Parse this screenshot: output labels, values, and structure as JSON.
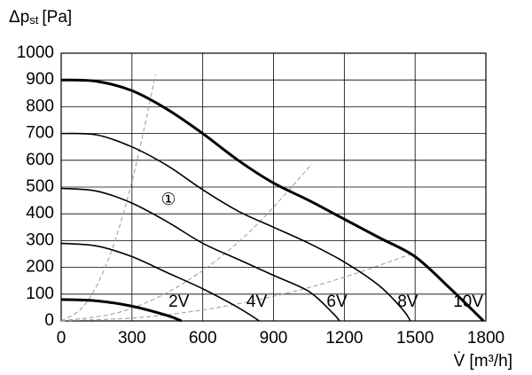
{
  "chart_data": {
    "type": "line",
    "y_label": {
      "symbol": "Δp",
      "subscript": "st",
      "unit": "[Pa]"
    },
    "x_label": "V̇ [m³/h]",
    "xlim": [
      0,
      1800
    ],
    "xticks": [
      0,
      300,
      600,
      900,
      1200,
      1500,
      1800
    ],
    "ylim": [
      0,
      1000
    ],
    "yticks": [
      0,
      100,
      200,
      300,
      400,
      500,
      600,
      700,
      800,
      900,
      1000
    ],
    "grid": true,
    "series": [
      {
        "name": "2V",
        "color": "#000",
        "thick": true,
        "x": [
          0,
          150,
          300,
          450,
          510
        ],
        "values": [
          80,
          75,
          55,
          20,
          0
        ]
      },
      {
        "name": "4V",
        "color": "#000",
        "thick": false,
        "x": [
          0,
          150,
          300,
          450,
          600,
          750,
          840
        ],
        "values": [
          290,
          280,
          240,
          180,
          120,
          50,
          0
        ]
      },
      {
        "name": "6V",
        "color": "#000",
        "thick": false,
        "x": [
          0,
          150,
          300,
          450,
          600,
          750,
          900,
          1050,
          1150,
          1180
        ],
        "values": [
          495,
          485,
          440,
          370,
          290,
          230,
          170,
          110,
          30,
          0
        ]
      },
      {
        "name": "8V",
        "color": "#000",
        "thick": false,
        "x": [
          0,
          150,
          300,
          450,
          600,
          750,
          900,
          1050,
          1200,
          1350,
          1450,
          1480
        ],
        "values": [
          700,
          695,
          650,
          580,
          490,
          410,
          350,
          290,
          220,
          130,
          40,
          0
        ]
      },
      {
        "name": "10V",
        "color": "#000",
        "thick": true,
        "x": [
          0,
          150,
          300,
          450,
          600,
          750,
          900,
          1050,
          1200,
          1350,
          1500,
          1650,
          1790
        ],
        "values": [
          900,
          895,
          860,
          790,
          700,
          600,
          515,
          450,
          380,
          310,
          240,
          120,
          0
        ]
      }
    ],
    "system_curves": [
      {
        "color": "#999",
        "x": [
          0,
          100,
          200,
          300,
          400
        ],
        "values": [
          0,
          60,
          230,
          520,
          920
        ]
      },
      {
        "color": "#999",
        "x": [
          0,
          265,
          530,
          795,
          1063
        ],
        "values": [
          0,
          37,
          147,
          330,
          586
        ]
      },
      {
        "color": "#999",
        "x": [
          0,
          375,
          750,
          1125,
          1500
        ],
        "values": [
          0,
          16,
          64,
          143,
          255
        ]
      }
    ],
    "annotation": "①"
  }
}
